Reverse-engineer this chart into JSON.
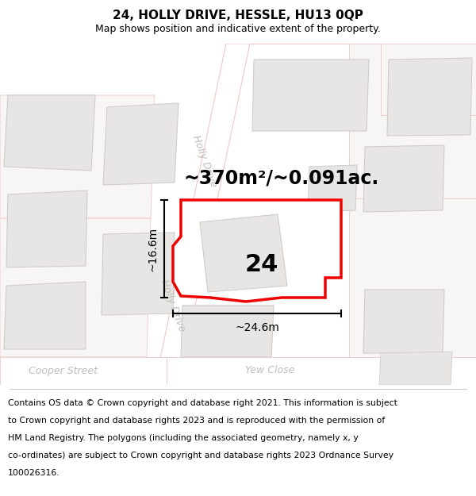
{
  "title": "24, HOLLY DRIVE, HESSLE, HU13 0QP",
  "subtitle": "Map shows position and indicative extent of the property.",
  "area_text": "~370m²/~0.091ac.",
  "number_label": "24",
  "width_label": "~24.6m",
  "height_label": "~16.6m",
  "footer": "Contains OS data © Crown copyright and database right 2021. This information is subject to Crown copyright and database rights 2023 and is reproduced with the permission of HM Land Registry. The polygons (including the associated geometry, namely x, y co-ordinates) are subject to Crown copyright and database rights 2023 Ordnance Survey 100026316.",
  "bg_color": "#f7f6f4",
  "road_color": "#ffffff",
  "road_edge_color": "#f0c8c8",
  "building_fill": "#e8e6e4",
  "building_edge": "#d0ccca",
  "plot_fill": "#ffffff",
  "plot_edge": "#ee0000",
  "dim_color": "#000000",
  "street_color": "#c0bcba",
  "title_fontsize": 11,
  "subtitle_fontsize": 9,
  "area_fontsize": 17,
  "number_fontsize": 22,
  "dim_fontsize": 10,
  "street_fontsize": 9,
  "footer_fontsize": 7.8,
  "plot_lw": 2.5
}
